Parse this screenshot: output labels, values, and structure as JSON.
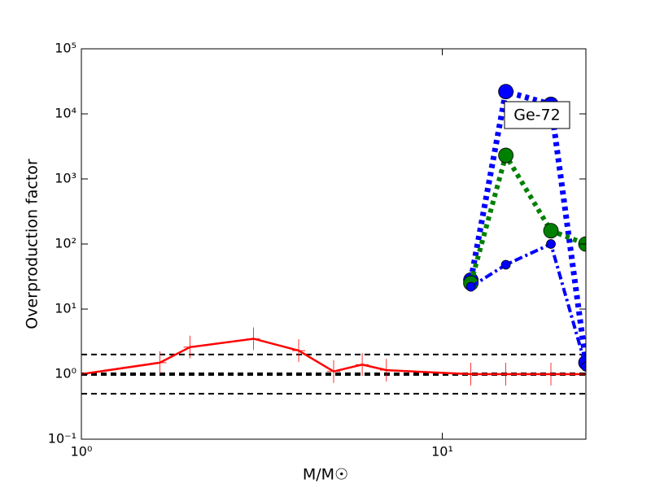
{
  "chart_data": {
    "type": "line",
    "ylabel": "Overproduction factor",
    "xlabel": "M/M☉",
    "annotation": "Ge-72",
    "xscale": "log",
    "yscale": "log",
    "xlim": [
      1,
      25
    ],
    "ylim": [
      0.1,
      100000
    ],
    "xticks": [
      {
        "value": 1,
        "label": "10⁰"
      },
      {
        "value": 10,
        "label": "10¹"
      }
    ],
    "yticks": [
      {
        "value": 0.1,
        "label": "10⁻¹"
      },
      {
        "value": 1,
        "label": "10⁰"
      },
      {
        "value": 10,
        "label": "10¹"
      },
      {
        "value": 100,
        "label": "10²"
      },
      {
        "value": 1000,
        "label": "10³"
      },
      {
        "value": 10000,
        "label": "10⁴"
      },
      {
        "value": 100000,
        "label": "10⁵"
      }
    ],
    "reference_lines": [
      {
        "value": 2,
        "color": "#000000",
        "linestyle": "dashed"
      },
      {
        "value": 1,
        "color": "#000000",
        "linestyle": "dashed-thick"
      },
      {
        "value": 0.5,
        "color": "#000000",
        "linestyle": "dashed"
      }
    ],
    "series": [
      {
        "color": "#ff0000",
        "linestyle": "solid",
        "marker": "plus",
        "x": [
          1,
          1.65,
          2,
          3,
          4,
          5,
          6,
          7,
          12,
          15,
          20,
          25
        ],
        "values": [
          1.0,
          1.5,
          2.6,
          3.5,
          2.3,
          1.1,
          1.4,
          1.15,
          1.0,
          1.0,
          1.0,
          1.0
        ]
      },
      {
        "color": "#0000ff",
        "linestyle": "dotted-thick",
        "marker": "circle-large",
        "x": [
          12,
          15,
          20,
          25
        ],
        "values": [
          28,
          22000,
          14000,
          1.5
        ]
      },
      {
        "color": "#008000",
        "linestyle": "dotted",
        "marker": "circle-large",
        "x": [
          12,
          15,
          20,
          25
        ],
        "values": [
          25,
          2300,
          160,
          100
        ]
      },
      {
        "color": "#0000ff",
        "linestyle": "dashdot",
        "marker": "circle-small",
        "x": [
          12,
          15,
          20,
          25
        ],
        "values": [
          22,
          48,
          100,
          1.3
        ]
      }
    ]
  }
}
